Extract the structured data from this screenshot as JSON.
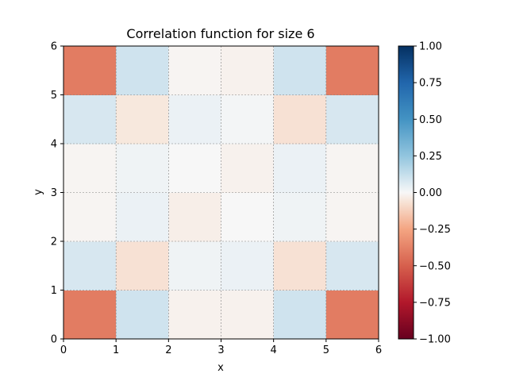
{
  "chart_data": {
    "type": "heatmap",
    "title": "Correlation function for size 6",
    "xlabel": "x",
    "ylabel": "y",
    "xlim": [
      0,
      6
    ],
    "ylim": [
      0,
      6
    ],
    "xticks": [
      "0",
      "1",
      "2",
      "3",
      "4",
      "5",
      "6"
    ],
    "yticks": [
      "0",
      "1",
      "2",
      "3",
      "4",
      "5",
      "6"
    ],
    "grid": true,
    "colormap": "RdBu",
    "vmin": -1.0,
    "vmax": 1.0,
    "colorbar_ticks": [
      "1.00",
      "0.75",
      "0.50",
      "0.25",
      "0.00",
      "−0.25",
      "−0.50",
      "−0.75",
      "−1.00"
    ],
    "colorbar_values": [
      1.0,
      0.75,
      0.5,
      0.25,
      0.0,
      -0.25,
      -0.5,
      -0.75,
      -1.0
    ],
    "rows_bottom_to_top": [
      [
        -0.4,
        0.1,
        -0.02,
        -0.02,
        0.1,
        -0.4
      ],
      [
        0.08,
        -0.07,
        0.02,
        0.03,
        -0.07,
        0.08
      ],
      [
        -0.01,
        0.03,
        -0.03,
        0.0,
        0.02,
        -0.01
      ],
      [
        -0.01,
        0.02,
        0.0,
        -0.02,
        0.03,
        -0.01
      ],
      [
        0.08,
        -0.05,
        0.03,
        0.01,
        -0.07,
        0.08
      ],
      [
        -0.4,
        0.1,
        -0.01,
        -0.02,
        0.1,
        -0.4
      ]
    ]
  }
}
